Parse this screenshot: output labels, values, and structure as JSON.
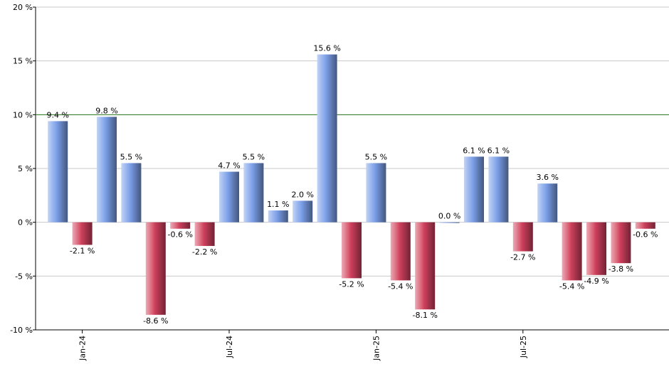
{
  "chart_data": {
    "type": "bar",
    "categories": [
      null,
      "Jan-24",
      null,
      null,
      null,
      null,
      null,
      "Jul-24",
      null,
      null,
      null,
      null,
      null,
      "Jan-25",
      null,
      null,
      null,
      null,
      null,
      "Jul-25",
      null,
      null,
      null,
      null,
      null
    ],
    "values": [
      9.4,
      -2.1,
      9.8,
      5.5,
      -8.6,
      -0.6,
      -2.2,
      4.7,
      5.5,
      1.1,
      2.0,
      15.6,
      -5.2,
      5.5,
      -5.4,
      -8.1,
      0.0,
      6.1,
      6.1,
      -2.7,
      3.6,
      -5.4,
      -4.9,
      -3.8,
      -0.6
    ],
    "value_labels": [
      "9.4 %",
      "-2.1 %",
      "9.8 %",
      "5.5 %",
      "-8.6 %",
      "-0.6 %",
      "-2.2 %",
      "4.7 %",
      "5.5 %",
      "1.1 %",
      "2.0 %",
      "15.6 %",
      "-5.2 %",
      "5.5 %",
      "-5.4 %",
      "-8.1 %",
      "0.0 %",
      "6.1 %",
      "6.1 %",
      "-2.7 %",
      "3.6 %",
      "-5.4 %",
      "-4.9 %",
      "-3.8 %",
      "-0.6 %"
    ],
    "positive_color": "#7a9ee8",
    "negative_color": "#d0405e",
    "ylim": [
      -10,
      20
    ],
    "yticks": [
      {
        "value": -10,
        "label": "-10 %"
      },
      {
        "value": -5,
        "label": "-5 %"
      },
      {
        "value": 0,
        "label": "0 %"
      },
      {
        "value": 5,
        "label": "5 %"
      },
      {
        "value": 10,
        "label": "10 %"
      },
      {
        "value": 15,
        "label": "15 %"
      },
      {
        "value": 20,
        "label": "20 %"
      }
    ],
    "grid": true,
    "reference_line": {
      "value": 10,
      "color": "#2a7a1f"
    }
  }
}
